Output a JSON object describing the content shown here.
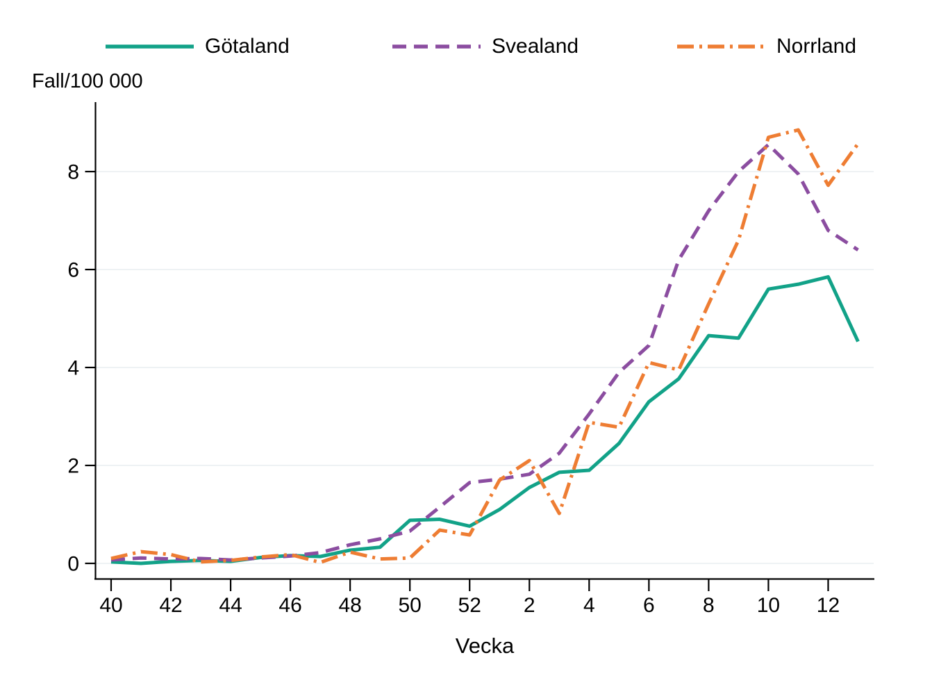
{
  "chart_data": {
    "type": "line",
    "title": "",
    "ylabel": "Fall/100 000",
    "xlabel": "Vecka",
    "categories": [
      "40",
      "41",
      "42",
      "43",
      "44",
      "45",
      "46",
      "47",
      "48",
      "49",
      "50",
      "51",
      "52",
      "1",
      "2",
      "3",
      "4",
      "5",
      "6",
      "7",
      "8",
      "9",
      "10",
      "11",
      "12",
      "13"
    ],
    "x_tick_labels": [
      "40",
      "42",
      "44",
      "46",
      "48",
      "50",
      "52",
      "2",
      "4",
      "6",
      "8",
      "10",
      "12"
    ],
    "y_tick_labels": [
      "0",
      "2",
      "4",
      "6",
      "8"
    ],
    "y_ticks": [
      0,
      2,
      4,
      6,
      8
    ],
    "ylim": [
      0,
      9.4
    ],
    "grid": "horizontal-only",
    "legend_position": "top",
    "axis_color": "#000000",
    "gridline_color": "#e9eef1",
    "series": [
      {
        "name": "Götaland",
        "color": "#12a288",
        "dash": "solid",
        "values": [
          0.03,
          0.0,
          0.04,
          0.06,
          0.04,
          0.12,
          0.16,
          0.14,
          0.27,
          0.33,
          0.88,
          0.9,
          0.76,
          1.1,
          1.55,
          1.86,
          1.9,
          2.45,
          3.3,
          3.77,
          4.65,
          4.6,
          5.6,
          5.7,
          5.85,
          4.53
        ]
      },
      {
        "name": "Svealand",
        "color": "#8b4da0",
        "dash": "dashed",
        "values": [
          0.07,
          0.11,
          0.09,
          0.1,
          0.07,
          0.11,
          0.15,
          0.22,
          0.38,
          0.5,
          0.66,
          1.15,
          1.65,
          1.72,
          1.82,
          2.25,
          3.05,
          3.9,
          4.45,
          6.2,
          7.2,
          8.0,
          8.55,
          7.95,
          6.8,
          6.4
        ]
      },
      {
        "name": "Norrland",
        "color": "#ee7d33",
        "dash": "dashdot",
        "values": [
          0.1,
          0.24,
          0.18,
          0.03,
          0.06,
          0.13,
          0.18,
          0.02,
          0.23,
          0.09,
          0.11,
          0.68,
          0.58,
          1.7,
          2.1,
          1.02,
          2.88,
          2.78,
          4.1,
          3.95,
          5.3,
          6.6,
          8.7,
          8.85,
          7.72,
          8.57
        ]
      }
    ]
  }
}
